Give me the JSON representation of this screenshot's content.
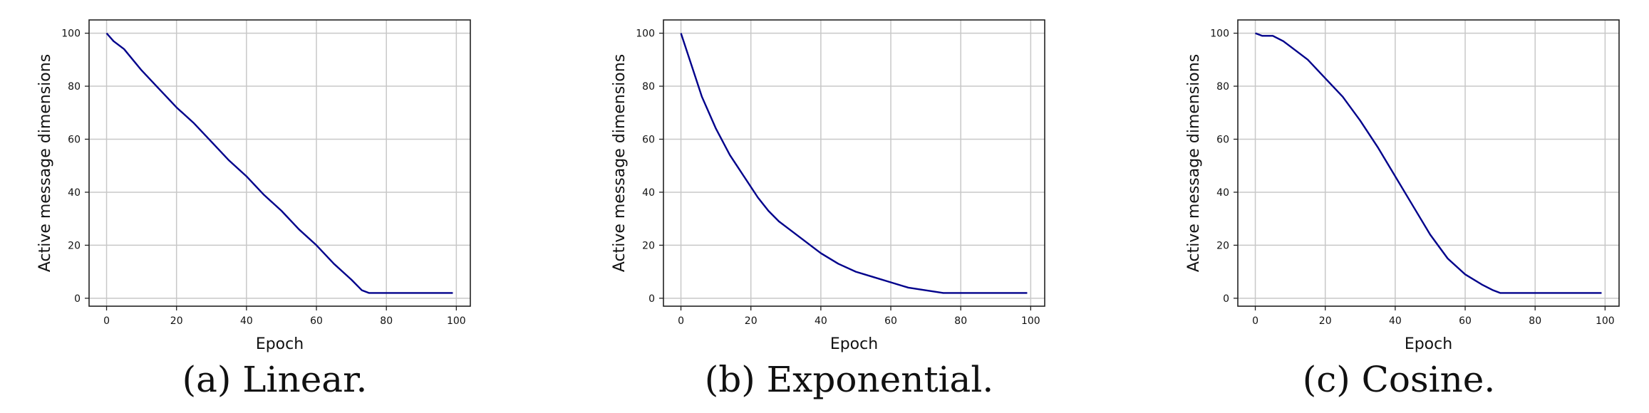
{
  "chart_data": [
    {
      "type": "line",
      "caption": "(a) Linear.",
      "xlabel": "Epoch",
      "ylabel": "Active message dimensions",
      "xlim": [
        -5,
        104
      ],
      "ylim": [
        -3,
        105
      ],
      "xticks": [
        0,
        20,
        40,
        60,
        80,
        100
      ],
      "yticks": [
        0,
        20,
        40,
        60,
        80,
        100
      ],
      "grid": true,
      "line_color": "#00008b",
      "series": [
        {
          "x": [
            0,
            2,
            5,
            10,
            15,
            20,
            25,
            30,
            35,
            40,
            45,
            50,
            55,
            60,
            65,
            70,
            73,
            75,
            80,
            90,
            99
          ],
          "y": [
            100,
            97,
            94,
            86,
            79,
            72,
            66,
            59,
            52,
            46,
            39,
            33,
            26,
            20,
            13,
            7,
            3,
            2,
            2,
            2,
            2
          ]
        }
      ]
    },
    {
      "type": "line",
      "caption": "(b) Exponential.",
      "xlabel": "Epoch",
      "ylabel": "Active message dimensions",
      "xlim": [
        -5,
        104
      ],
      "ylim": [
        -3,
        105
      ],
      "xticks": [
        0,
        20,
        40,
        60,
        80,
        100
      ],
      "yticks": [
        0,
        20,
        40,
        60,
        80,
        100
      ],
      "grid": true,
      "line_color": "#00008b",
      "series": [
        {
          "x": [
            0,
            2,
            4,
            6,
            8,
            10,
            12,
            14,
            16,
            18,
            20,
            22,
            25,
            28,
            30,
            35,
            40,
            45,
            50,
            55,
            60,
            65,
            70,
            75,
            80,
            90,
            99
          ],
          "y": [
            100,
            92,
            84,
            76,
            70,
            64,
            59,
            54,
            50,
            46,
            42,
            38,
            33,
            29,
            27,
            22,
            17,
            13,
            10,
            8,
            6,
            4,
            3,
            2,
            2,
            2,
            2
          ]
        }
      ]
    },
    {
      "type": "line",
      "caption": "(c) Cosine.",
      "xlabel": "Epoch",
      "ylabel": "Active message dimensions",
      "xlim": [
        -5,
        104
      ],
      "ylim": [
        -3,
        105
      ],
      "xticks": [
        0,
        20,
        40,
        60,
        80,
        100
      ],
      "yticks": [
        0,
        20,
        40,
        60,
        80,
        100
      ],
      "grid": true,
      "line_color": "#00008b",
      "series": [
        {
          "x": [
            0,
            2,
            5,
            8,
            10,
            15,
            20,
            25,
            30,
            35,
            40,
            45,
            50,
            55,
            60,
            65,
            68,
            70,
            75,
            80,
            90,
            99
          ],
          "y": [
            100,
            99,
            99,
            97,
            95,
            90,
            83,
            76,
            67,
            57,
            46,
            35,
            24,
            15,
            9,
            5,
            3,
            2,
            2,
            2,
            2,
            2
          ]
        }
      ]
    }
  ]
}
